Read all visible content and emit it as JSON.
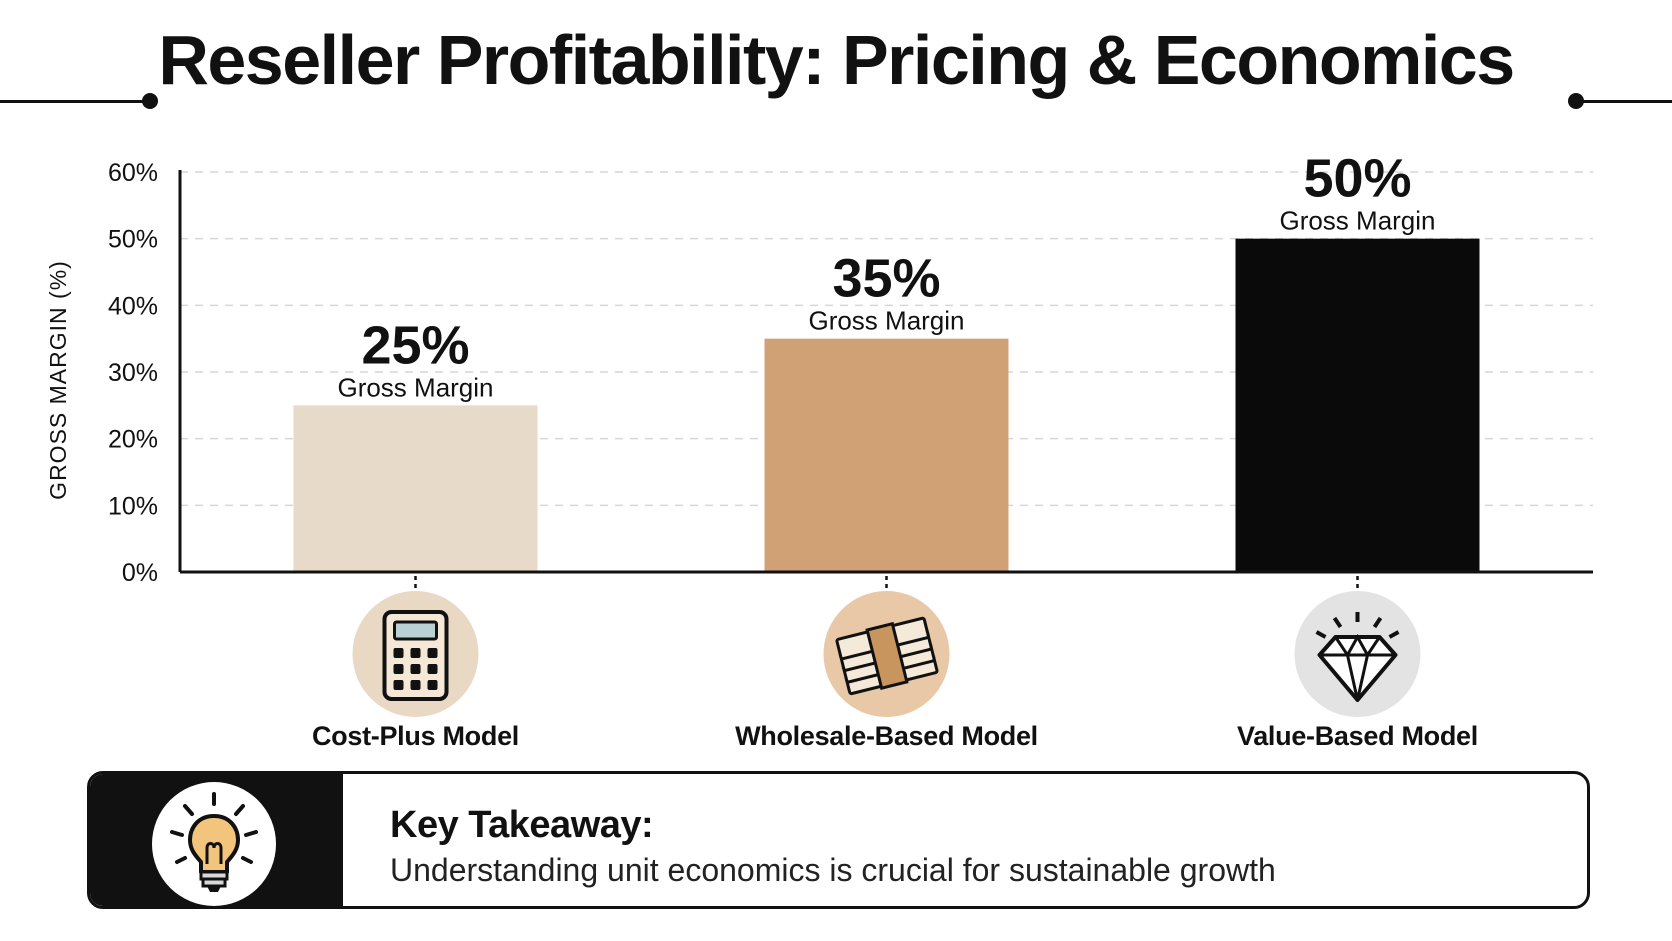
{
  "title": "Reseller Profitability: Pricing & Economics",
  "chart_data": {
    "type": "bar",
    "categories": [
      "Cost-Plus Model",
      "Wholesale-Based Model",
      "Value-Based Model"
    ],
    "values": [
      25,
      35,
      50
    ],
    "value_labels": [
      "25%",
      "35%",
      "50%"
    ],
    "value_caption": "Gross Margin",
    "ylabel": "GROSS MARGIN (%)",
    "xlabel": "",
    "ylim": [
      0,
      60
    ],
    "yticks": [
      0,
      10,
      20,
      30,
      40,
      50,
      60
    ],
    "ytick_labels": [
      "0%",
      "10%",
      "20%",
      "30%",
      "40%",
      "50%",
      "60%"
    ],
    "grid": true,
    "colors": [
      "#e8dac8",
      "#d0a175",
      "#0a0a0a"
    ],
    "icons": [
      "calculator-icon",
      "money-stack-icon",
      "diamond-icon"
    ],
    "icon_backgrounds": [
      "#e9d8c3",
      "#e8c8a6",
      "#e3e3e3"
    ]
  },
  "takeaway": {
    "heading": "Key Takeaway:",
    "text": "Understanding unit economics is crucial for sustainable growth",
    "icon": "lightbulb-icon"
  }
}
